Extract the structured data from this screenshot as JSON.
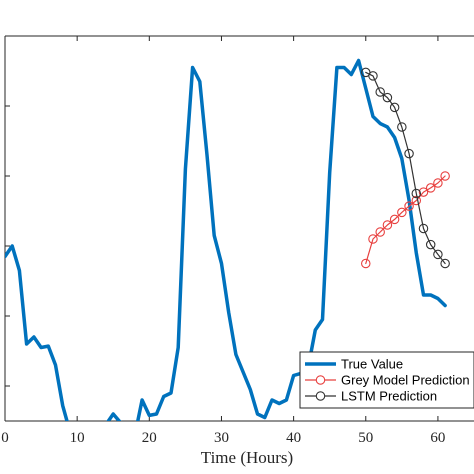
{
  "chart_data": {
    "type": "line",
    "xlabel": "Time (Hours)",
    "ylabel": "",
    "title": "",
    "xlim": [
      0,
      65
    ],
    "ylim": [
      0,
      5.5
    ],
    "xticks": [
      0,
      10,
      20,
      30,
      40,
      50,
      60
    ],
    "yticks": [
      0.5,
      1.5,
      2.5,
      3.5,
      4.5,
      5.5
    ],
    "grid": false,
    "legend_position": "bottom-right",
    "series": [
      {
        "name": "True Value",
        "color": "#0072BD",
        "marker": "none",
        "x": [
          0,
          1,
          2,
          3,
          4,
          5,
          6,
          7,
          8,
          9,
          10,
          11,
          12,
          13,
          14,
          15,
          16,
          17,
          18,
          19,
          20,
          21,
          22,
          23,
          24,
          25,
          26,
          27,
          28,
          29,
          30,
          31,
          32,
          33,
          34,
          35,
          36,
          37,
          38,
          39,
          40,
          41,
          42,
          43,
          44,
          45,
          46,
          47,
          48,
          49,
          50,
          51,
          52,
          53,
          54,
          55,
          56,
          57,
          58,
          59,
          60,
          61
        ],
        "y": [
          2.35,
          2.5,
          2.15,
          1.1,
          1.2,
          1.05,
          1.07,
          0.8,
          0.22,
          -0.15,
          -0.5,
          -0.55,
          -0.45,
          -0.05,
          -0.05,
          0.1,
          -0.02,
          -0.55,
          -0.2,
          0.3,
          0.08,
          0.1,
          0.35,
          0.4,
          1.05,
          3.6,
          5.05,
          4.85,
          3.8,
          2.65,
          2.25,
          1.55,
          0.95,
          0.7,
          0.45,
          0.1,
          0.05,
          0.3,
          0.25,
          0.3,
          0.65,
          0.68,
          0.75,
          1.3,
          1.45,
          3.55,
          5.05,
          5.05,
          4.95,
          5.15,
          4.75,
          4.35,
          4.25,
          4.2,
          4.05,
          3.75,
          3.15,
          2.4,
          1.8,
          1.8,
          1.75,
          1.65
        ]
      },
      {
        "name": "Grey Model Prediction",
        "color": "#E8403F",
        "marker": "circle",
        "x": [
          50,
          51,
          52,
          53,
          54,
          55,
          56,
          57,
          58,
          59,
          60,
          61
        ],
        "y": [
          2.25,
          2.6,
          2.7,
          2.8,
          2.88,
          2.98,
          3.07,
          3.15,
          3.27,
          3.33,
          3.4,
          3.5
        ]
      },
      {
        "name": "LSTM Prediction",
        "color": "#333333",
        "marker": "circle",
        "x": [
          50,
          51,
          52,
          53,
          54,
          55,
          56,
          57,
          58,
          59,
          60,
          61
        ],
        "y": [
          4.98,
          4.93,
          4.7,
          4.62,
          4.48,
          4.2,
          3.82,
          3.25,
          2.75,
          2.52,
          2.38,
          2.25
        ]
      }
    ]
  }
}
